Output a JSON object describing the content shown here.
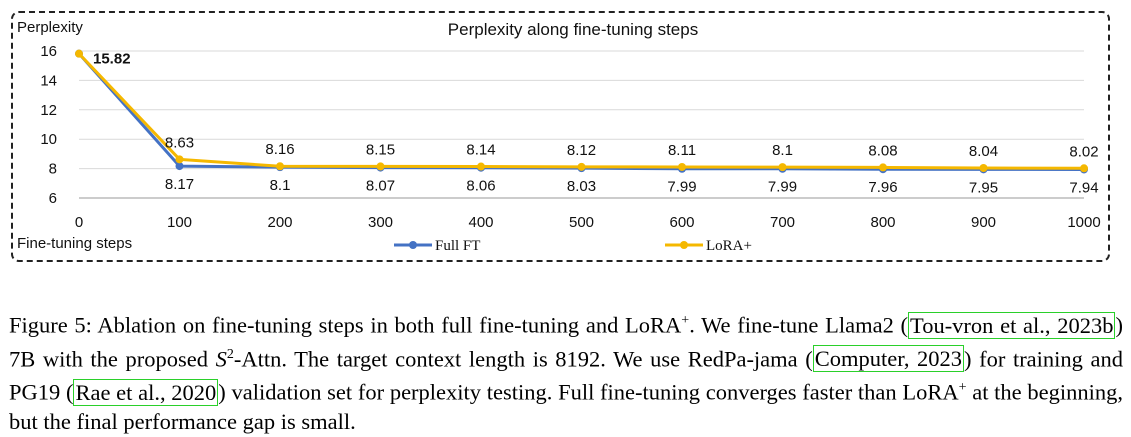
{
  "chart_data": {
    "type": "line",
    "title": "Perplexity along fine-tuning steps",
    "ylabel": "Perplexity",
    "xlabel": "Fine-tuning steps",
    "x": [
      0,
      100,
      200,
      300,
      400,
      500,
      600,
      700,
      800,
      900,
      1000
    ],
    "yticks": [
      6,
      8,
      10,
      12,
      14,
      16
    ],
    "ylim": [
      6,
      16
    ],
    "grid": true,
    "legend_position": "bottom",
    "series": [
      {
        "name": "Full FT",
        "color": "#4472c4",
        "values": [
          15.82,
          8.17,
          8.1,
          8.07,
          8.06,
          8.03,
          7.99,
          7.99,
          7.96,
          7.95,
          7.94
        ],
        "labels": [
          "",
          "8.17",
          "8.1",
          "8.07",
          "8.06",
          "8.03",
          "7.99",
          "7.99",
          "7.96",
          "7.95",
          "7.94"
        ]
      },
      {
        "name": "LoRA+",
        "color": "#f5b800",
        "values": [
          15.82,
          8.63,
          8.16,
          8.15,
          8.14,
          8.12,
          8.11,
          8.1,
          8.08,
          8.04,
          8.02
        ],
        "labels": [
          "15.82",
          "8.63",
          "8.16",
          "8.15",
          "8.14",
          "8.12",
          "8.11",
          "8.1",
          "8.08",
          "8.04",
          "8.02"
        ]
      }
    ]
  },
  "caption": {
    "lead": "Figure 5: Ablation on fine-tuning steps in both full fine-tuning and LoRA",
    "lead_sup": "+",
    "p1": ". We fine-tune Llama2 (",
    "cite1": "Tou-vron et al., 2023b",
    "p2": ") 7B with the proposed ",
    "s2": "S",
    "s2_sup": "2",
    "p3": "-Attn. The target context length is 8192. We use RedPa-jama (",
    "cite2": "Computer, 2023",
    "p4": ") for training and PG19 (",
    "cite3": "Rae et al., 2020",
    "p5": ") validation set for perplexity testing. Full fine-tuning converges faster than LoRA",
    "p5_sup": "+",
    "p6": " at the beginning, but the final performance gap is small."
  }
}
